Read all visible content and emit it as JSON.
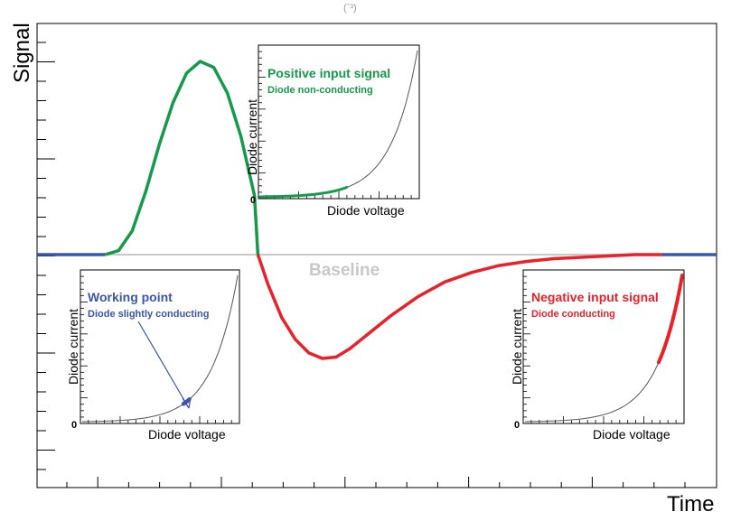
{
  "chart_data": {
    "type": "line",
    "main": {
      "xlabel": "Time",
      "ylabel": "Signal",
      "baseline_label": "Baseline",
      "top_fragment": "(ˉ³)",
      "baseline_value": 0,
      "ylim": [
        -1.2,
        1.0
      ],
      "xlim": [
        0,
        100
      ],
      "baseline_color": "#c8c8c8",
      "series": [
        {
          "color": "#3b55a8",
          "points": [
            [
              0,
              0
            ],
            [
              10,
              0
            ]
          ]
        },
        {
          "color": "#159a4a",
          "points": [
            [
              10,
              0
            ],
            [
              12,
              0.02
            ],
            [
              14,
              0.12
            ],
            [
              16,
              0.32
            ],
            [
              18,
              0.56
            ],
            [
              20,
              0.77
            ],
            [
              22,
              0.92
            ],
            [
              24,
              0.98
            ],
            [
              26,
              0.95
            ],
            [
              28,
              0.82
            ],
            [
              30,
              0.6
            ],
            [
              32,
              0.3
            ],
            [
              32.5,
              0
            ]
          ]
        },
        {
          "color": "#e8212a",
          "points": [
            [
              32.5,
              0
            ],
            [
              34,
              -0.22
            ],
            [
              36,
              -0.46
            ],
            [
              38,
              -0.62
            ],
            [
              40,
              -0.72
            ],
            [
              42,
              -0.76
            ],
            [
              44,
              -0.75
            ],
            [
              46,
              -0.69
            ],
            [
              48,
              -0.61
            ],
            [
              52,
              -0.45
            ],
            [
              56,
              -0.31
            ],
            [
              60,
              -0.2
            ],
            [
              64,
              -0.13
            ],
            [
              68,
              -0.08
            ],
            [
              72,
              -0.05
            ],
            [
              76,
              -0.03
            ],
            [
              80,
              -0.02
            ],
            [
              84,
              -0.01
            ],
            [
              88,
              0
            ],
            [
              92,
              0
            ]
          ]
        },
        {
          "color": "#3b55a8",
          "points": [
            [
              92,
              0
            ],
            [
              100,
              0
            ]
          ]
        }
      ]
    },
    "insets": [
      {
        "title": "Positive input signal",
        "subtitle": "Diode non-conducting",
        "xlabel": "Diode voltage",
        "ylabel": "Diode current",
        "zero_label": "0",
        "color": "#159a4a",
        "highlight_range": [
          0,
          0.55
        ],
        "highlight_width": 3
      },
      {
        "title": "Working point",
        "subtitle": "Diode slightly conducting",
        "xlabel": "Diode voltage",
        "ylabel": "Diode current",
        "zero_label": "0",
        "color": "#3b55a8",
        "highlight_range": [
          0.65,
          0.69
        ],
        "highlight_width": 4,
        "arrow_target": 0.66
      },
      {
        "title": "Negative input signal",
        "subtitle": "Diode conducting",
        "xlabel": "Diode voltage",
        "ylabel": "Diode current",
        "zero_label": "0",
        "color": "#e8212a",
        "highlight_range": [
          0.85,
          1.0
        ],
        "highlight_width": 4
      }
    ]
  }
}
